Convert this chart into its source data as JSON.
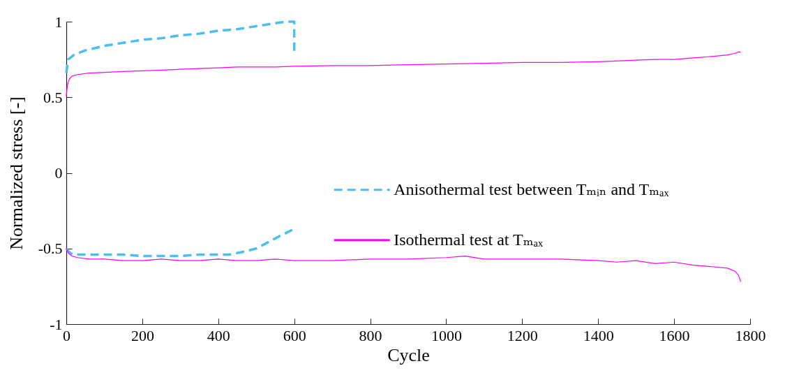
{
  "chart_data": {
    "type": "line",
    "xlabel": "Cycle",
    "ylabel": "Normalized stress [-]",
    "xlim": [
      0,
      1800
    ],
    "ylim": [
      -1,
      1
    ],
    "xticks": [
      0,
      200,
      400,
      600,
      800,
      1000,
      1200,
      1400,
      1600,
      1800
    ],
    "yticks": [
      -1,
      -0.5,
      0,
      0.5,
      1
    ],
    "grid": false,
    "legend": "right",
    "marker": "none",
    "series": [
      {
        "name": "Anisothermal test between Tₘᵢₙ and Tₘₐₓ",
        "color": "#4dbeee",
        "line_style": "dashed",
        "x": [
          0,
          5,
          20,
          50,
          100,
          150,
          200,
          250,
          300,
          350,
          400,
          450,
          500,
          550,
          580,
          600,
          600,
          null,
          0,
          10,
          20,
          50,
          100,
          150,
          200,
          250,
          300,
          350,
          400,
          430,
          450,
          470,
          500,
          530,
          560,
          600
        ],
        "values": [
          0.66,
          0.75,
          0.78,
          0.81,
          0.84,
          0.86,
          0.88,
          0.89,
          0.91,
          0.92,
          0.94,
          0.95,
          0.97,
          0.99,
          1.0,
          1.0,
          0.8,
          null,
          -0.5,
          -0.53,
          -0.54,
          -0.54,
          -0.54,
          -0.54,
          -0.55,
          -0.55,
          -0.55,
          -0.54,
          -0.54,
          -0.54,
          -0.53,
          -0.52,
          -0.5,
          -0.46,
          -0.42,
          -0.37
        ]
      },
      {
        "name": "Isothermal test at Tₘₐₓ",
        "color": "#ff00ff",
        "line_style": "solid",
        "x": [
          0,
          3,
          8,
          15,
          30,
          60,
          100,
          150,
          200,
          250,
          300,
          350,
          400,
          450,
          500,
          550,
          600,
          700,
          800,
          900,
          1000,
          1100,
          1200,
          1300,
          1400,
          1500,
          1550,
          1600,
          1650,
          1700,
          1740,
          1760,
          1770,
          1775,
          null,
          0,
          5,
          15,
          30,
          60,
          100,
          150,
          200,
          250,
          300,
          350,
          400,
          450,
          500,
          550,
          600,
          700,
          800,
          900,
          1000,
          1050,
          1100,
          1200,
          1300,
          1400,
          1450,
          1500,
          1550,
          1600,
          1650,
          1700,
          1740,
          1760,
          1770,
          1775
        ],
        "values": [
          0.51,
          0.58,
          0.62,
          0.64,
          0.65,
          0.66,
          0.665,
          0.67,
          0.675,
          0.68,
          0.685,
          0.69,
          0.695,
          0.7,
          0.7,
          0.7,
          0.705,
          0.71,
          0.71,
          0.715,
          0.72,
          0.725,
          0.73,
          0.73,
          0.735,
          0.745,
          0.75,
          0.75,
          0.76,
          0.77,
          0.78,
          0.79,
          0.8,
          0.8,
          null,
          -0.5,
          -0.53,
          -0.55,
          -0.56,
          -0.57,
          -0.57,
          -0.58,
          -0.58,
          -0.57,
          -0.58,
          -0.58,
          -0.57,
          -0.58,
          -0.58,
          -0.57,
          -0.58,
          -0.58,
          -0.57,
          -0.57,
          -0.56,
          -0.55,
          -0.57,
          -0.57,
          -0.57,
          -0.58,
          -0.59,
          -0.58,
          -0.6,
          -0.59,
          -0.61,
          -0.62,
          -0.63,
          -0.65,
          -0.68,
          -0.72
        ]
      }
    ]
  }
}
